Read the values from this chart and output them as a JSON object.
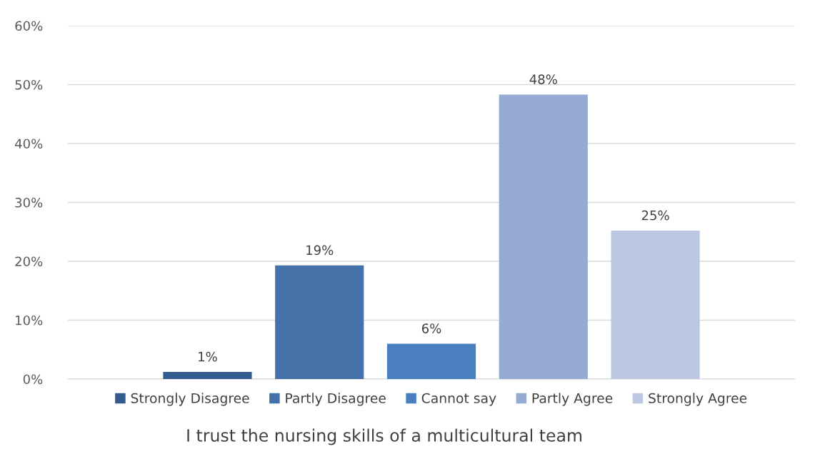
{
  "chart_data": {
    "type": "bar",
    "title": "I trust the nursing skills of a multicultural team",
    "categories": [
      null
    ],
    "series": [
      {
        "name": "Strongly Disagree",
        "color": "#335b8e",
        "values": [
          1.2
        ],
        "value_labels": [
          "1%"
        ]
      },
      {
        "name": "Partly Disagree",
        "color": "#4472a8",
        "values": [
          19.3
        ],
        "value_labels": [
          "19%"
        ]
      },
      {
        "name": "Cannot say",
        "color": "#4a7fc0",
        "values": [
          6.0
        ],
        "value_labels": [
          "6%"
        ]
      },
      {
        "name": "Partly Agree",
        "color": "#95abd4",
        "values": [
          48.3
        ],
        "value_labels": [
          "48%"
        ]
      },
      {
        "name": "Strongly Agree",
        "color": "#bcc8e2",
        "values": [
          25.2
        ],
        "value_labels": [
          "25%"
        ]
      }
    ],
    "ylim": [
      0,
      60
    ],
    "yticks": [
      {
        "value": 0,
        "label": "0%"
      },
      {
        "value": 10,
        "label": "10%"
      },
      {
        "value": 20,
        "label": "20%"
      },
      {
        "value": 30,
        "label": "30%"
      },
      {
        "value": 40,
        "label": "40%"
      },
      {
        "value": 50,
        "label": "50%"
      },
      {
        "value": 60,
        "label": "60%"
      }
    ],
    "grid": "y",
    "legend": "bottom"
  }
}
